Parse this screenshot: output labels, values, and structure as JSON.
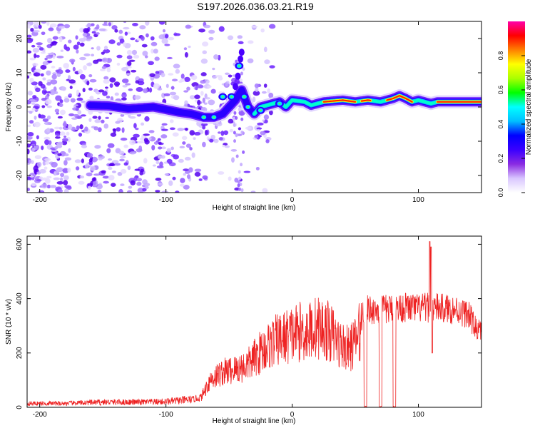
{
  "title": "S197.2026.036.03.21.R19",
  "chart_data": [
    {
      "type": "heatmap",
      "title": "S197.2026.036.03.21.R19",
      "xlabel": "Height of straight line (km)",
      "ylabel": "Frequency (Hz)",
      "xlim": [
        -210,
        150
      ],
      "ylim": [
        -25,
        25
      ],
      "xticks": [
        -200,
        -100,
        0,
        100
      ],
      "xtick_labels": [
        "-200",
        "-100",
        "0",
        "100"
      ],
      "yticks": [
        -20,
        -10,
        0,
        10,
        20
      ],
      "ytick_labels": [
        "-20",
        "-10",
        "0",
        "10",
        "20"
      ],
      "colorbar": {
        "label": "Normalized spectral amplitude",
        "range": [
          0,
          1
        ],
        "ticks": [
          0.0,
          0.2,
          0.4,
          0.6,
          0.8
        ],
        "tick_labels": [
          "0.0",
          "0.2",
          "0.4",
          "0.6",
          "0.8"
        ],
        "colors": [
          "#ffffff",
          "#d9c6ff",
          "#8a2be2",
          "#3a00ff",
          "#0000ff",
          "#00bfff",
          "#00ffff",
          "#00ff00",
          "#aaff00",
          "#ffff00",
          "#ff8000",
          "#ff0000",
          "#ff00aa"
        ]
      },
      "ridge": [
        [
          -160,
          0.5
        ],
        [
          -145,
          0.3
        ],
        [
          -130,
          -0.5
        ],
        [
          -110,
          0
        ],
        [
          -90,
          -1.5
        ],
        [
          -80,
          -2.0
        ],
        [
          -70,
          -3.0
        ],
        [
          -62,
          -3.0
        ],
        [
          -55,
          -2.0
        ],
        [
          -45,
          2.0
        ],
        [
          -40,
          5.0
        ],
        [
          -35,
          0
        ],
        [
          -30,
          -2.0
        ],
        [
          -25,
          0
        ],
        [
          -20,
          0.5
        ],
        [
          -10,
          1.5
        ],
        [
          -5,
          0
        ],
        [
          0,
          2.0
        ],
        [
          10,
          1.5
        ],
        [
          15,
          0.5
        ],
        [
          25,
          1.5
        ],
        [
          40,
          2.0
        ],
        [
          50,
          1.5
        ],
        [
          60,
          2.0
        ],
        [
          70,
          1.5
        ],
        [
          80,
          2.5
        ],
        [
          85,
          3.3
        ],
        [
          90,
          2.5
        ],
        [
          95,
          1.5
        ],
        [
          100,
          2.0
        ],
        [
          110,
          1.0
        ],
        [
          115,
          1.5
        ],
        [
          130,
          1.5
        ],
        [
          150,
          1.5
        ]
      ],
      "scatter_range": [
        -210,
        -35
      ]
    },
    {
      "type": "line",
      "xlabel": "Height of straight line (km)",
      "ylabel": "SNR (10 * v/v)",
      "xlim": [
        -210,
        150
      ],
      "ylim": [
        0,
        630
      ],
      "xticks": [
        -200,
        -100,
        0,
        100
      ],
      "xtick_labels": [
        "-200",
        "-100",
        "0",
        "100"
      ],
      "yticks": [
        0,
        200,
        400,
        600
      ],
      "ytick_labels": [
        "0",
        "200",
        "400",
        "600"
      ],
      "color": "#ee2222",
      "envelope": [
        [
          -210,
          15
        ],
        [
          -180,
          15
        ],
        [
          -150,
          20
        ],
        [
          -120,
          20
        ],
        [
          -100,
          22
        ],
        [
          -80,
          30
        ],
        [
          -72,
          40
        ],
        [
          -65,
          110
        ],
        [
          -55,
          140
        ],
        [
          -45,
          150
        ],
        [
          -35,
          170
        ],
        [
          -25,
          220
        ],
        [
          -15,
          260
        ],
        [
          -5,
          280
        ],
        [
          5,
          300
        ],
        [
          12,
          300
        ],
        [
          20,
          320
        ],
        [
          30,
          300
        ],
        [
          38,
          250
        ],
        [
          45,
          230
        ],
        [
          50,
          260
        ],
        [
          55,
          320
        ],
        [
          56,
          390
        ],
        [
          70,
          390
        ],
        [
          80,
          395
        ],
        [
          90,
          400
        ],
        [
          100,
          395
        ],
        [
          110,
          400
        ],
        [
          120,
          395
        ],
        [
          130,
          390
        ],
        [
          140,
          370
        ],
        [
          145,
          320
        ],
        [
          150,
          300
        ]
      ],
      "dropouts": [
        [
          57,
          59
        ],
        [
          69,
          71
        ],
        [
          80,
          82
        ]
      ],
      "spikes": [
        [
          109,
          610
        ],
        [
          110,
          590
        ],
        [
          111,
          200
        ]
      ]
    }
  ]
}
